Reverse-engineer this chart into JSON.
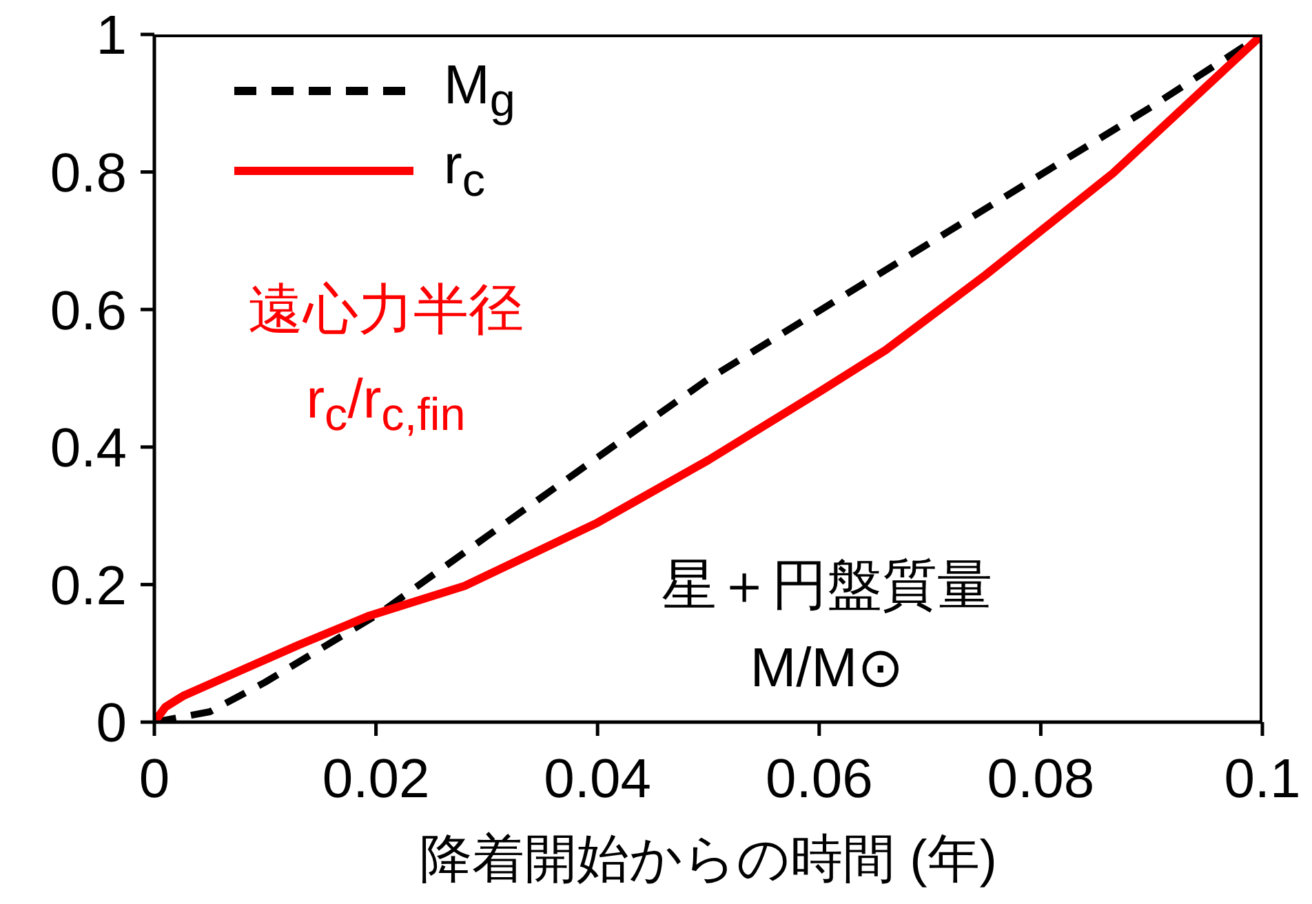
{
  "chart_data": {
    "type": "line",
    "xlabel": "降着開始からの時間 (年)",
    "xlim": [
      0,
      0.1
    ],
    "xticks": [
      0,
      0.02,
      0.04,
      0.06,
      0.08,
      0.1
    ],
    "ylim": [
      0,
      1
    ],
    "yticks": [
      0,
      0.2,
      0.4,
      0.6,
      0.8,
      1
    ],
    "grid": false,
    "legend": "top left",
    "marker": "none",
    "series": [
      {
        "name": "M$_{g}$",
        "color": "#000000",
        "line_style": "dashed",
        "x": [
          0,
          0.005,
          0.01,
          0.0203,
          0.03,
          0.04,
          0.05,
          0.06,
          0.07,
          0.0812,
          0.09,
          0.1
        ],
        "values": [
          0,
          0.015,
          0.058,
          0.158,
          0.27,
          0.385,
          0.499,
          0.598,
          0.697,
          0.808,
          0.895,
          1
        ]
      },
      {
        "name": "r$_{c}$",
        "color": "#ff0000",
        "line_style": "solid",
        "x": [
          0,
          0.001,
          0.0026,
          0.0068,
          0.013,
          0.0193,
          0.028,
          0.04,
          0.05,
          0.06,
          0.066,
          0.075,
          0.0865,
          0.1
        ],
        "values": [
          0,
          0.022,
          0.038,
          0.068,
          0.112,
          0.154,
          0.198,
          0.29,
          0.381,
          0.48,
          0.541,
          0.65,
          0.798,
          1
        ]
      }
    ],
    "annotations": [
      "遠心力半径",
      "r$_{c}$/r$_{c,fin}$",
      "星＋円盤質量",
      "M/M⊙"
    ]
  }
}
